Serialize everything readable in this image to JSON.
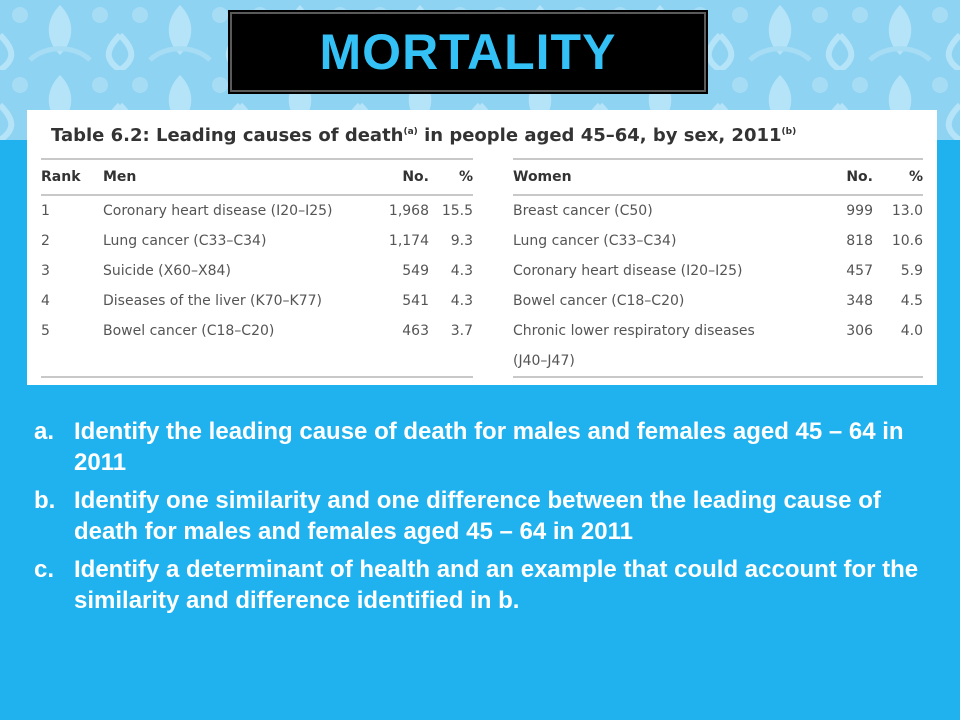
{
  "slide": {
    "title": "MORTALITY"
  },
  "table": {
    "caption": "Table 6.2: Leading causes of death",
    "caption_sup_a": "(a)",
    "caption_rest": " in people aged 45–64, by sex, 2011",
    "caption_sup_b": "(b)",
    "men": {
      "headers": [
        "Rank",
        "Men",
        "No.",
        "%"
      ],
      "rows": [
        [
          "1",
          "Coronary heart disease (I20–I25)",
          "1,968",
          "15.5"
        ],
        [
          "2",
          "Lung cancer (C33–C34)",
          "1,174",
          "9.3"
        ],
        [
          "3",
          "Suicide (X60–X84)",
          "549",
          "4.3"
        ],
        [
          "4",
          "Diseases of the liver (K70–K77)",
          "541",
          "4.3"
        ],
        [
          "5",
          "Bowel cancer (C18–C20)",
          "463",
          "3.7"
        ]
      ]
    },
    "women": {
      "headers": [
        "Women",
        "No.",
        "%"
      ],
      "rows": [
        [
          "Breast cancer (C50)",
          "999",
          "13.0"
        ],
        [
          "Lung cancer (C33–C34)",
          "818",
          "10.6"
        ],
        [
          "Coronary heart disease (I20–I25)",
          "457",
          "5.9"
        ],
        [
          "Bowel cancer (C18–C20)",
          "348",
          "4.5"
        ],
        [
          "Chronic lower respiratory diseases",
          "306",
          "4.0"
        ]
      ],
      "last_row_continuation": "(J40–J47)"
    }
  },
  "questions": [
    {
      "marker": "a.",
      "text": "Identify the leading cause of death for males and females aged 45 – 64 in 2011"
    },
    {
      "marker": "b.",
      "text": "Identify one similarity and one difference between the leading cause of death for males and females aged 45 – 64 in 2011"
    },
    {
      "marker": "c.",
      "text": "Identify a determinant of health and an example that could account for the similarity and difference identified in b."
    }
  ]
}
